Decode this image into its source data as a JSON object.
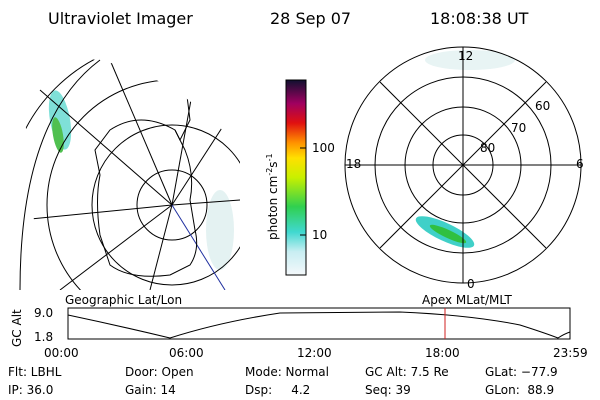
{
  "header": {
    "title": "Ultraviolet Imager",
    "date": "28 Sep 07",
    "time": "18:08:38 UT"
  },
  "colorbar": {
    "unit_parts": [
      "photon cm",
      "-2",
      "s",
      "-1"
    ],
    "ticks": [
      "100",
      "10"
    ]
  },
  "polar_plot": {
    "mlt_labels": [
      "12",
      "18",
      "6",
      "0"
    ],
    "mlat_labels": [
      "60",
      "70",
      "80"
    ]
  },
  "orbit_plot": {
    "left_label": "Geographic Lat/Lon",
    "right_label": "Apex MLat/MLT",
    "y_title": "GC Alt",
    "y_labels": [
      "9.0",
      "1.8"
    ],
    "x_labels": [
      "00:00",
      "06:00",
      "12:00",
      "18:00",
      "23:59"
    ]
  },
  "info": {
    "rows": [
      [
        "Flt: LBHL",
        "Door: Open",
        "Mode: Normal",
        "GC Alt: 7.5 Re",
        "GLat: −77.9"
      ],
      [
        "IP: 36.0",
        "Gain: 14",
        "Dsp:     4.2",
        "Seq: 39",
        "GLon:  88.9"
      ]
    ]
  }
}
